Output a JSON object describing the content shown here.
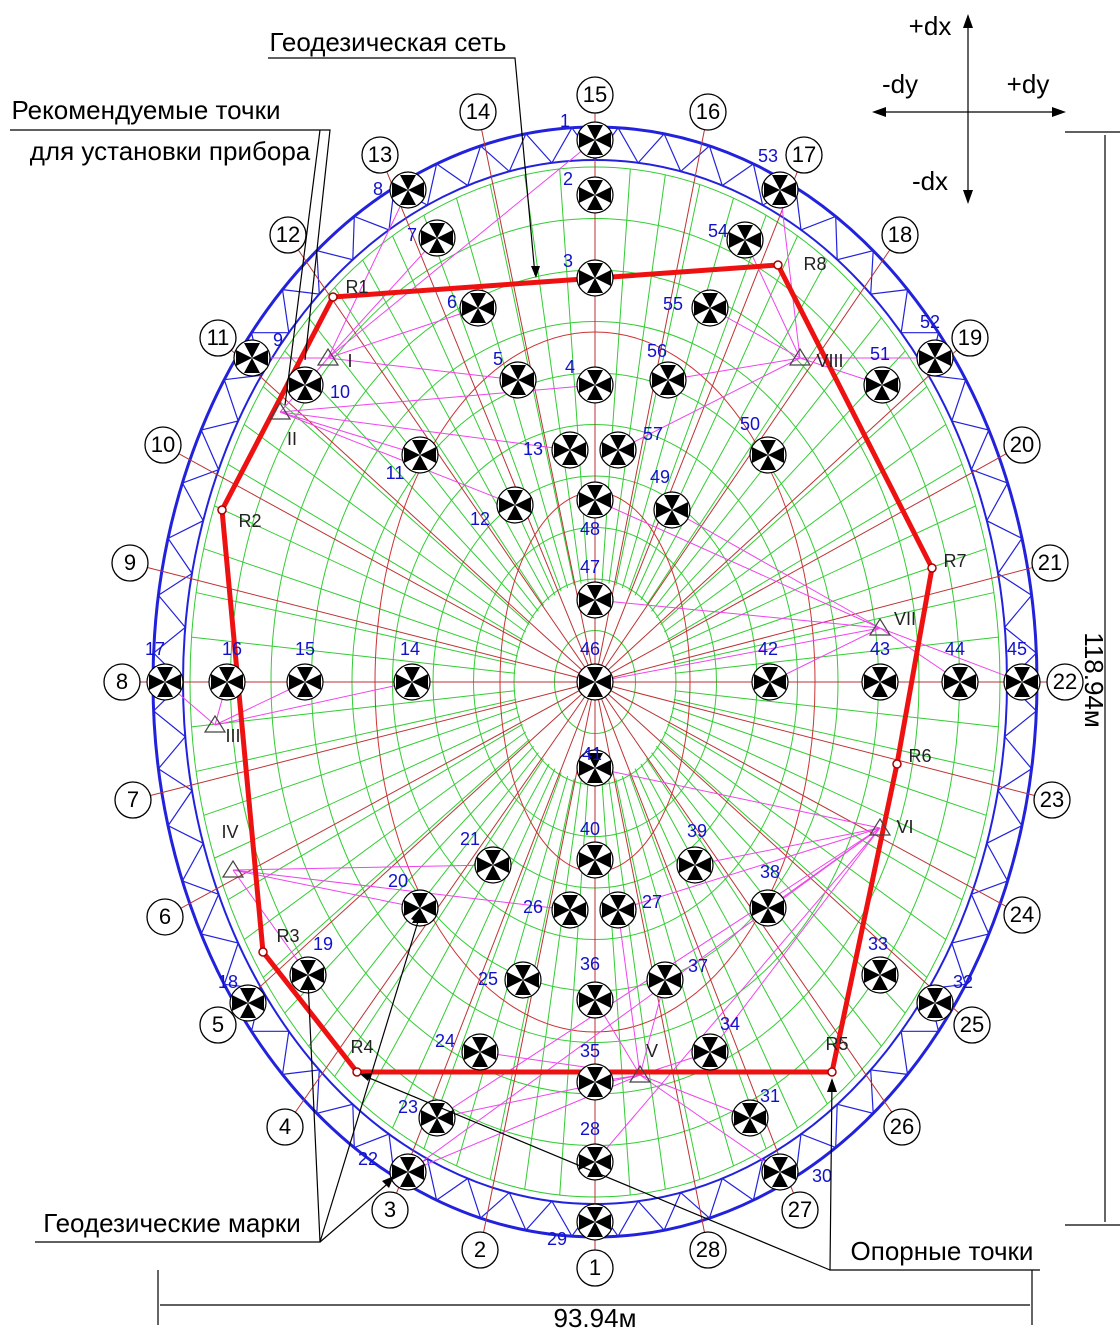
{
  "annotations": {
    "network": "Геодезическая сеть",
    "recommended_line1": "Рекомендуемые точки",
    "recommended_line2": "для установки прибора",
    "marks": "Геодезические марки",
    "reference": "Опорные точки"
  },
  "compass": {
    "plus_dx": "+dx",
    "minus_dx": "-dx",
    "minus_dy": "-dy",
    "plus_dy": "+dy"
  },
  "dimensions": {
    "height": "118.94м",
    "width": "93.94м"
  },
  "axes": {
    "labels": [
      "1",
      "2",
      "3",
      "4",
      "5",
      "6",
      "7",
      "8",
      "9",
      "10",
      "11",
      "12",
      "13",
      "14",
      "15",
      "16",
      "17",
      "18",
      "19",
      "20",
      "21",
      "22",
      "23",
      "24",
      "25",
      "26",
      "27",
      "28"
    ]
  },
  "marks": {
    "labels": [
      "1",
      "2",
      "3",
      "4",
      "5",
      "6",
      "7",
      "8",
      "9",
      "10",
      "11",
      "12",
      "13",
      "14",
      "15",
      "16",
      "17",
      "18",
      "19",
      "20",
      "21",
      "22",
      "23",
      "24",
      "25",
      "26",
      "27",
      "28",
      "29",
      "30",
      "31",
      "32",
      "33",
      "34",
      "35",
      "36",
      "37",
      "38",
      "39",
      "40",
      "41",
      "42",
      "43",
      "44",
      "45",
      "46",
      "47",
      "48",
      "49",
      "50",
      "51",
      "52",
      "53",
      "54",
      "55",
      "56",
      "57"
    ]
  },
  "stations": {
    "labels": [
      "I",
      "II",
      "III",
      "IV",
      "V",
      "VI",
      "VII",
      "VIII"
    ]
  },
  "reference_points": {
    "labels": [
      "R1",
      "R2",
      "R3",
      "R4",
      "R5",
      "R6",
      "R7",
      "R8"
    ]
  }
}
